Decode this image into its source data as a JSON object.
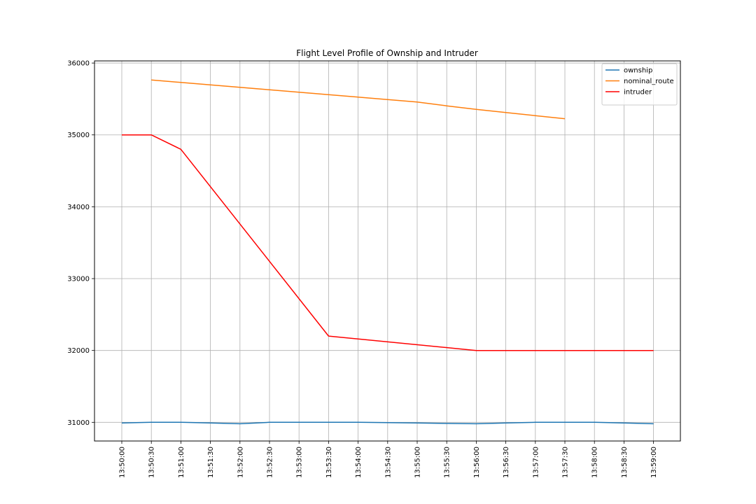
{
  "chart_data": {
    "type": "line",
    "title": "Flight Level Profile of Ownship and Intruder",
    "xlabel": "",
    "ylabel": "",
    "x_ticks": [
      "13:50:00",
      "13:50:30",
      "13:51:00",
      "13:51:30",
      "13:52:00",
      "13:52:30",
      "13:53:00",
      "13:53:30",
      "13:54:00",
      "13:54:30",
      "13:55:00",
      "13:55:30",
      "13:56:00",
      "13:56:30",
      "13:57:00",
      "13:57:30",
      "13:58:00",
      "13:58:30",
      "13:59:00"
    ],
    "y_ticks": [
      31000,
      32000,
      33000,
      34000,
      35000,
      36000
    ],
    "ylim": [
      30740,
      36030
    ],
    "grid": true,
    "legend_position": "top-right",
    "series": [
      {
        "name": "ownship",
        "color": "#1f77b4",
        "points": [
          [
            "13:50:00",
            30990
          ],
          [
            "13:50:30",
            31000
          ],
          [
            "13:51:00",
            31000
          ],
          [
            "13:51:30",
            30990
          ],
          [
            "13:52:00",
            30980
          ],
          [
            "13:52:30",
            31000
          ],
          [
            "13:53:00",
            31000
          ],
          [
            "13:53:30",
            31000
          ],
          [
            "13:54:00",
            31000
          ],
          [
            "13:54:30",
            30995
          ],
          [
            "13:55:00",
            30990
          ],
          [
            "13:55:30",
            30985
          ],
          [
            "13:56:00",
            30980
          ],
          [
            "13:56:30",
            30990
          ],
          [
            "13:57:00",
            31000
          ],
          [
            "13:57:30",
            31000
          ],
          [
            "13:58:00",
            31000
          ],
          [
            "13:58:30",
            30990
          ],
          [
            "13:59:00",
            30980
          ]
        ]
      },
      {
        "name": "nominal_route",
        "color": "#ff7f0e",
        "points": [
          [
            "13:50:30",
            35765
          ],
          [
            "13:51:00",
            35730
          ],
          [
            "13:51:30",
            35697
          ],
          [
            "13:52:00",
            35662
          ],
          [
            "13:52:30",
            35628
          ],
          [
            "13:53:00",
            35595
          ],
          [
            "13:53:30",
            35560
          ],
          [
            "13:54:00",
            35526
          ],
          [
            "13:54:30",
            35492
          ],
          [
            "13:55:00",
            35458
          ],
          [
            "13:55:30",
            35405
          ],
          [
            "13:56:00",
            35355
          ],
          [
            "13:56:30",
            35312
          ],
          [
            "13:57:00",
            35268
          ],
          [
            "13:57:30",
            35225
          ]
        ]
      },
      {
        "name": "intruder",
        "color": "#ff0000",
        "points": [
          [
            "13:50:00",
            35000
          ],
          [
            "13:50:30",
            35000
          ],
          [
            "13:51:00",
            34800
          ],
          [
            "13:53:30",
            32200
          ],
          [
            "13:56:00",
            32000
          ],
          [
            "13:59:00",
            32000
          ]
        ]
      }
    ]
  }
}
